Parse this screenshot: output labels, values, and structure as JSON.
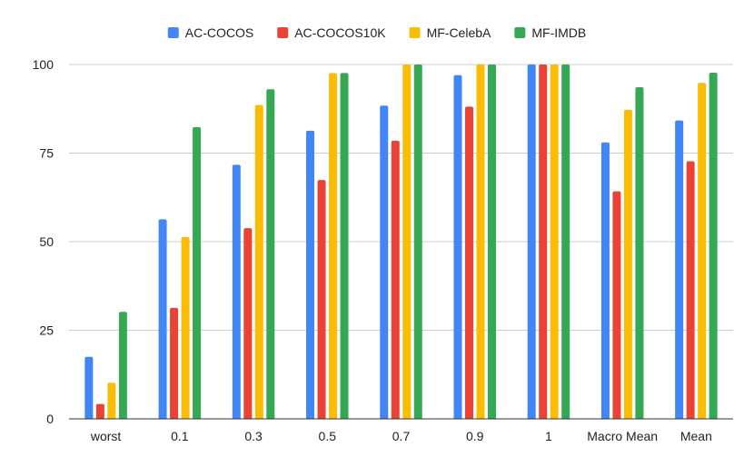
{
  "chart_data": {
    "type": "bar",
    "title": "",
    "xlabel": "",
    "ylabel": "",
    "categories": [
      "worst",
      "0.1",
      "0.3",
      "0.5",
      "0.7",
      "0.9",
      "1",
      "Macro Mean",
      "Mean"
    ],
    "series": [
      {
        "name": "AC-COCOS",
        "color": "#4285F4",
        "values": [
          17.5,
          56.3,
          71.7,
          81.3,
          88.4,
          97.0,
          100,
          78.0,
          84.2
        ]
      },
      {
        "name": "AC-COCOS10K",
        "color": "#EA4335",
        "values": [
          4.2,
          31.3,
          53.8,
          67.4,
          78.5,
          88.1,
          100,
          64.2,
          72.7
        ]
      },
      {
        "name": "MF-CelebA",
        "color": "#FBBC04",
        "values": [
          10.2,
          51.3,
          88.6,
          97.6,
          100,
          100,
          100,
          87.2,
          94.8
        ]
      },
      {
        "name": "MF-IMDB",
        "color": "#34A853",
        "values": [
          30.2,
          82.3,
          93.0,
          97.6,
          100,
          100,
          100,
          93.6,
          97.7
        ]
      }
    ],
    "ylim": [
      0,
      100
    ],
    "yticks": [
      0,
      25,
      50,
      75,
      100
    ],
    "grid": true,
    "legend_position": "top-center"
  }
}
